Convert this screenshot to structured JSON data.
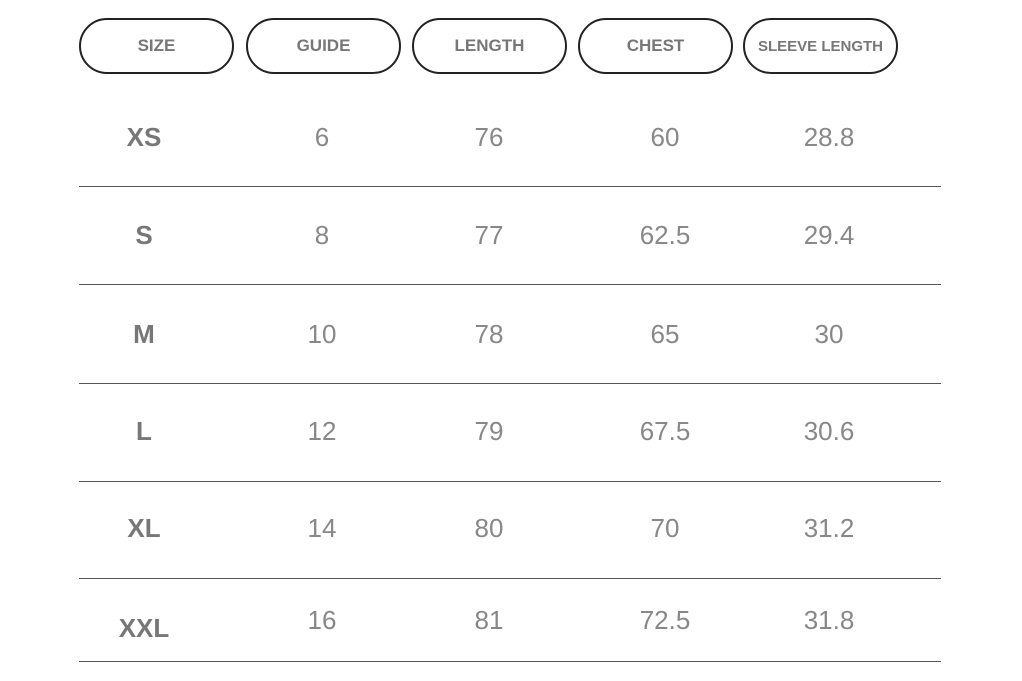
{
  "table": {
    "headers": [
      "SIZE",
      "GUIDE",
      "LENGTH",
      "CHEST",
      "SLEEVE LENGTH"
    ],
    "rows": [
      [
        "XS",
        6,
        76,
        60,
        28.8
      ],
      [
        "S",
        8,
        77,
        62.5,
        29.4
      ],
      [
        "M",
        10,
        78,
        65,
        30
      ],
      [
        "L",
        12,
        79,
        67.5,
        30.6
      ],
      [
        "XL",
        14,
        80,
        70,
        31.2
      ],
      [
        "XXL",
        16,
        81,
        72.5,
        31.8
      ]
    ]
  }
}
